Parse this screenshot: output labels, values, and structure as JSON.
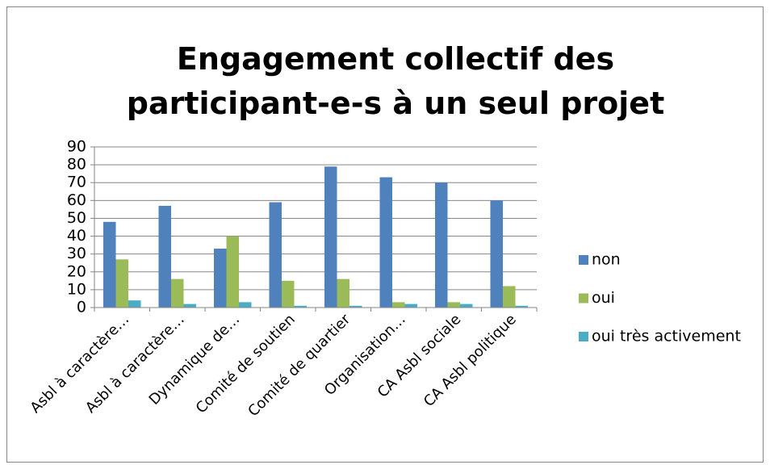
{
  "chart_data": {
    "type": "bar",
    "title": "Engagement collectif des participant-e-s à un seul projet",
    "categories": [
      "Asbl à caractère…",
      "Asbl à caractère…",
      "Dynamique de…",
      "Comité de soutien",
      "Comité de quartier",
      "Organisation…",
      "CA Asbl sociale",
      "CA Asbl politique"
    ],
    "series": [
      {
        "name": "non",
        "color": "#4f81bd",
        "values": [
          48,
          57,
          33,
          59,
          79,
          73,
          70,
          60
        ]
      },
      {
        "name": "oui",
        "color": "#9bbb59",
        "values": [
          27,
          16,
          40,
          15,
          16,
          3,
          3,
          12
        ]
      },
      {
        "name": "oui très activement",
        "color": "#4bacc6",
        "values": [
          4,
          2,
          3,
          1,
          1,
          2,
          2,
          1
        ]
      }
    ],
    "ylim": [
      0,
      90
    ],
    "yticks": [
      0,
      10,
      20,
      30,
      40,
      50,
      60,
      70,
      80,
      90
    ],
    "grid": true,
    "legend": "right"
  }
}
